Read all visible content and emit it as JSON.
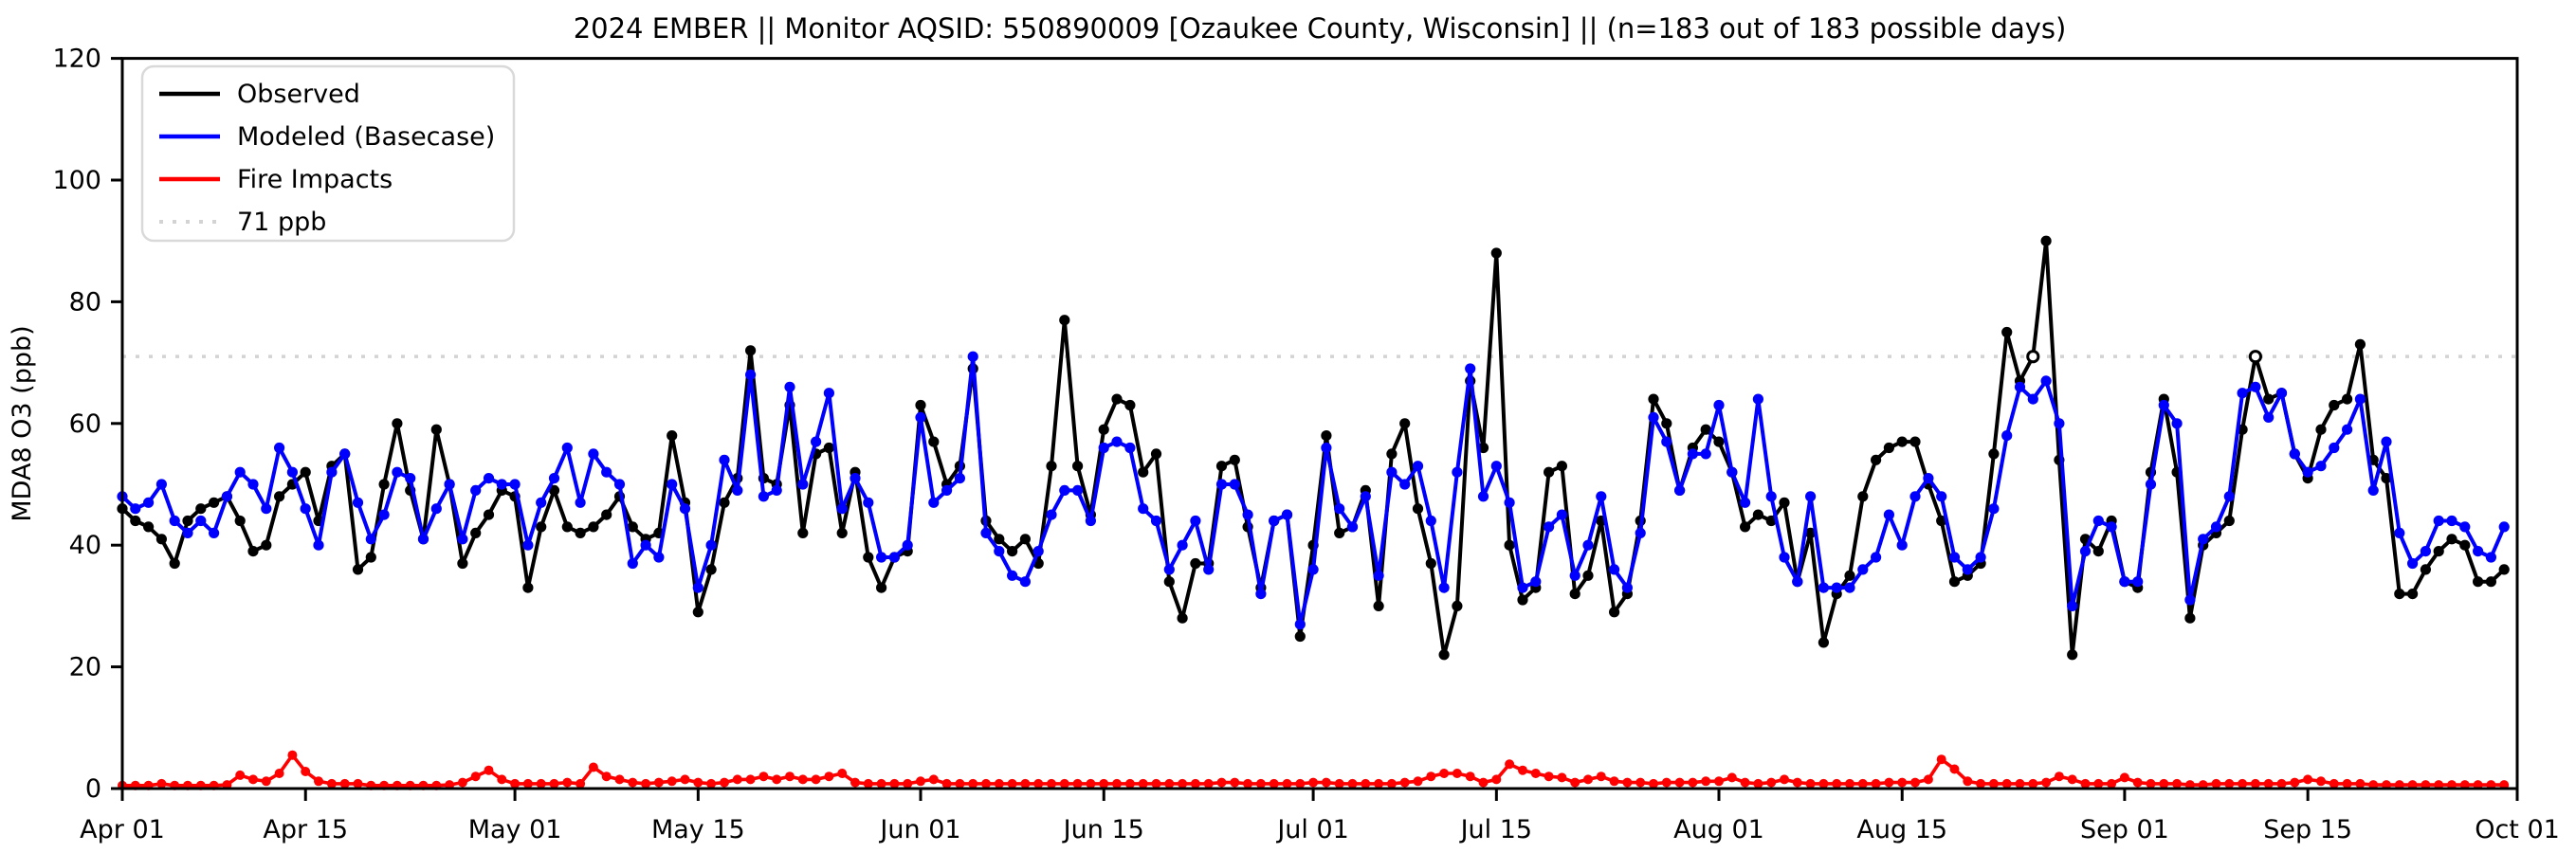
{
  "figure": {
    "title": "2024 EMBER || Monitor AQSID: 550890009 [Ozaukee County, Wisconsin] || (n=183 out of 183 possible days)",
    "y_axis_label": "MDA8 O3 (ppb)"
  },
  "legend": {
    "items": [
      {
        "label": "Observed",
        "color": "#000000",
        "style": "solid"
      },
      {
        "label": "Modeled (Basecase)",
        "color": "#0000ff",
        "style": "solid"
      },
      {
        "label": "Fire Impacts",
        "color": "#ff0000",
        "style": "solid"
      },
      {
        "label": "71 ppb",
        "color": "#d3d3d3",
        "style": "dotted"
      }
    ]
  },
  "chart_data": {
    "type": "line",
    "title": "2024 EMBER || Monitor AQSID: 550890009 [Ozaukee County, Wisconsin] || (n=183 out of 183 possible days)",
    "xlabel": "",
    "ylabel": "MDA8 O3 (ppb)",
    "ylim": [
      0,
      120
    ],
    "yticks": [
      0,
      20,
      40,
      60,
      80,
      100,
      120
    ],
    "grid": false,
    "legend_position": "upper left",
    "n_points": 183,
    "x_start_label": "Apr 01",
    "x_end_label": "Oct 01",
    "x_tick_labels": [
      "Apr 01",
      "Apr 15",
      "May 01",
      "May 15",
      "Jun 01",
      "Jun 15",
      "Jul 01",
      "Jul 15",
      "Aug 01",
      "Aug 15",
      "Sep 01",
      "Sep 15",
      "Oct 01"
    ],
    "x_tick_day_indices": [
      0,
      14,
      30,
      44,
      61,
      75,
      91,
      105,
      122,
      136,
      153,
      167,
      183
    ],
    "threshold": {
      "value": 71,
      "label": "71 ppb",
      "color": "#d3d3d3"
    },
    "open_marker_indices": [
      146,
      163
    ],
    "series": [
      {
        "name": "Observed",
        "color": "#000000",
        "values": [
          46,
          44,
          43,
          41,
          37,
          44,
          46,
          47,
          48,
          44,
          39,
          40,
          48,
          50,
          52,
          44,
          53,
          55,
          36,
          38,
          50,
          60,
          49,
          41,
          59,
          50,
          37,
          42,
          45,
          49,
          48,
          33,
          43,
          49,
          43,
          42,
          43,
          45,
          48,
          43,
          41,
          42,
          58,
          47,
          29,
          36,
          47,
          51,
          72,
          51,
          50,
          63,
          42,
          55,
          56,
          42,
          52,
          38,
          33,
          38,
          39,
          63,
          57,
          50,
          53,
          69,
          44,
          41,
          39,
          41,
          37,
          53,
          77,
          53,
          45,
          59,
          64,
          63,
          52,
          55,
          34,
          28,
          37,
          37,
          53,
          54,
          43,
          33,
          44,
          45,
          25,
          40,
          58,
          42,
          43,
          49,
          30,
          55,
          60,
          46,
          37,
          22,
          30,
          67,
          56,
          88,
          40,
          31,
          33,
          52,
          53,
          32,
          35,
          44,
          29,
          32,
          44,
          64,
          60,
          49,
          56,
          59,
          57,
          52,
          43,
          45,
          44,
          47,
          34,
          42,
          24,
          32,
          35,
          48,
          54,
          56,
          57,
          57,
          50,
          44,
          34,
          35,
          37,
          55,
          75,
          67,
          71,
          90,
          54,
          22,
          41,
          39,
          44,
          34,
          33,
          52,
          64,
          52,
          28,
          40,
          42,
          44,
          59,
          71,
          64,
          65,
          55,
          51,
          59,
          63,
          64,
          73,
          54,
          51,
          32,
          32,
          36,
          39,
          41,
          40,
          34,
          34,
          36
        ]
      },
      {
        "name": "Modeled (Basecase)",
        "color": "#0000ff",
        "values": [
          48,
          46,
          47,
          50,
          44,
          42,
          44,
          42,
          48,
          52,
          50,
          46,
          56,
          52,
          46,
          40,
          52,
          55,
          47,
          41,
          45,
          52,
          51,
          41,
          46,
          50,
          41,
          49,
          51,
          50,
          50,
          40,
          47,
          51,
          56,
          47,
          55,
          52,
          50,
          37,
          40,
          38,
          50,
          46,
          33,
          40,
          54,
          49,
          68,
          48,
          49,
          66,
          50,
          57,
          65,
          46,
          51,
          47,
          38,
          38,
          40,
          61,
          47,
          49,
          51,
          71,
          42,
          39,
          35,
          34,
          39,
          45,
          49,
          49,
          44,
          56,
          57,
          56,
          46,
          44,
          36,
          40,
          44,
          36,
          50,
          50,
          45,
          32,
          44,
          45,
          27,
          36,
          56,
          46,
          43,
          48,
          35,
          52,
          50,
          53,
          44,
          33,
          52,
          69,
          48,
          53,
          47,
          33,
          34,
          43,
          45,
          35,
          40,
          48,
          36,
          33,
          42,
          61,
          57,
          49,
          55,
          55,
          63,
          52,
          47,
          64,
          48,
          38,
          34,
          48,
          33,
          33,
          33,
          36,
          38,
          45,
          40,
          48,
          51,
          48,
          38,
          36,
          38,
          46,
          58,
          66,
          64,
          67,
          60,
          30,
          39,
          44,
          43,
          34,
          34,
          50,
          63,
          60,
          31,
          41,
          43,
          48,
          65,
          66,
          61,
          65,
          55,
          52,
          53,
          56,
          59,
          64,
          49,
          57,
          42,
          37,
          39,
          44,
          44,
          43,
          39,
          38,
          43
        ]
      },
      {
        "name": "Fire Impacts",
        "color": "#ff0000",
        "values": [
          0.5,
          0.5,
          0.5,
          0.8,
          0.5,
          0.5,
          0.5,
          0.5,
          0.6,
          2.2,
          1.5,
          1.2,
          2.5,
          5.5,
          2.8,
          1.2,
          0.8,
          0.8,
          0.8,
          0.5,
          0.5,
          0.5,
          0.5,
          0.5,
          0.5,
          0.6,
          1.0,
          2.0,
          3.0,
          1.5,
          0.8,
          0.8,
          0.8,
          0.8,
          1.0,
          0.8,
          3.5,
          2.0,
          1.5,
          1.0,
          0.8,
          1.0,
          1.2,
          1.5,
          1.0,
          0.8,
          1.0,
          1.5,
          1.5,
          2.0,
          1.5,
          2.0,
          1.5,
          1.5,
          2.0,
          2.5,
          1.0,
          0.8,
          0.8,
          0.8,
          0.8,
          1.2,
          1.5,
          0.8,
          0.8,
          0.8,
          0.8,
          0.8,
          0.8,
          0.8,
          0.8,
          0.8,
          0.8,
          0.8,
          0.8,
          0.8,
          0.8,
          0.8,
          0.8,
          0.8,
          0.8,
          0.8,
          0.8,
          0.8,
          1.0,
          1.0,
          0.8,
          0.8,
          0.8,
          0.8,
          0.8,
          1.0,
          1.0,
          0.8,
          0.8,
          0.8,
          0.8,
          0.8,
          1.0,
          1.2,
          2.0,
          2.5,
          2.5,
          2.0,
          1.0,
          1.5,
          4.0,
          3.0,
          2.5,
          2.0,
          1.8,
          1.0,
          1.5,
          2.0,
          1.2,
          1.0,
          1.0,
          0.8,
          1.0,
          1.0,
          1.0,
          1.2,
          1.2,
          1.8,
          1.0,
          0.8,
          1.0,
          1.5,
          1.0,
          0.8,
          0.8,
          0.8,
          0.8,
          0.8,
          0.8,
          1.0,
          1.0,
          1.0,
          1.5,
          4.8,
          3.2,
          1.2,
          0.8,
          0.8,
          0.8,
          0.8,
          0.8,
          1.0,
          2.0,
          1.5,
          0.8,
          0.8,
          0.8,
          1.8,
          1.0,
          0.8,
          0.8,
          0.8,
          0.6,
          0.6,
          0.8,
          0.8,
          0.8,
          0.8,
          0.8,
          0.8,
          1.0,
          1.5,
          1.2,
          0.8,
          0.8,
          0.8,
          0.6,
          0.6,
          0.6,
          0.6,
          0.6,
          0.6,
          0.6,
          0.6,
          0.6,
          0.6,
          0.6
        ]
      }
    ]
  }
}
